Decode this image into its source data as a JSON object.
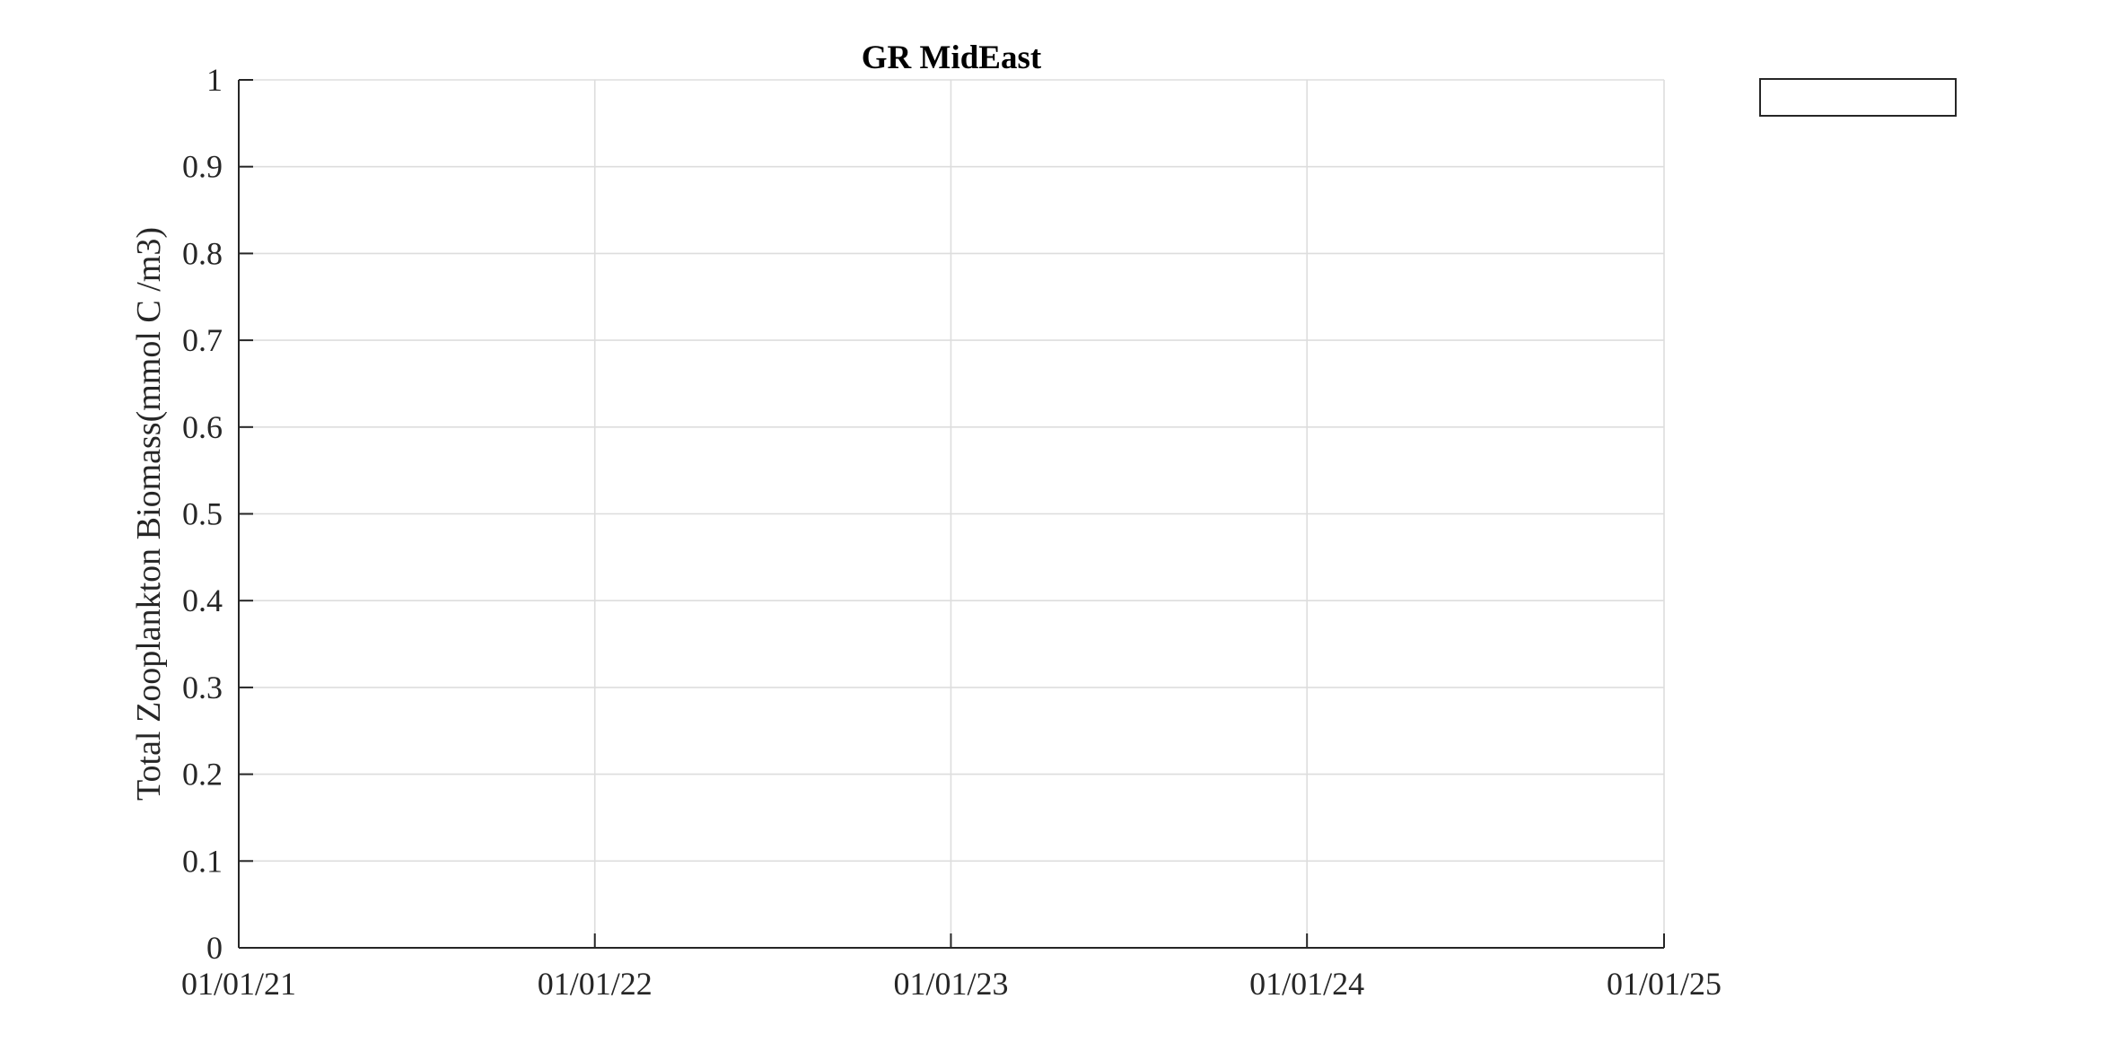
{
  "chart_data": {
    "type": "line",
    "title": "GR MidEast",
    "xlabel": "",
    "ylabel": "Total Zooplankton Biomass(mmol C /m3)",
    "x_ticks": [
      "01/01/21",
      "01/01/22",
      "01/01/23",
      "01/01/24",
      "01/01/25"
    ],
    "y_ticks": [
      "0",
      "0.1",
      "0.2",
      "0.3",
      "0.4",
      "0.5",
      "0.6",
      "0.7",
      "0.8",
      "0.9",
      "1"
    ],
    "xlim": [
      "2021-01-01",
      "2025-01-01"
    ],
    "ylim": [
      0,
      1
    ],
    "grid": true,
    "legend": {
      "placement": "outside-top-right",
      "entries": []
    },
    "series": [],
    "colors": {
      "axis": "#262626",
      "grid": "#dddddd",
      "background": "#ffffff"
    }
  }
}
